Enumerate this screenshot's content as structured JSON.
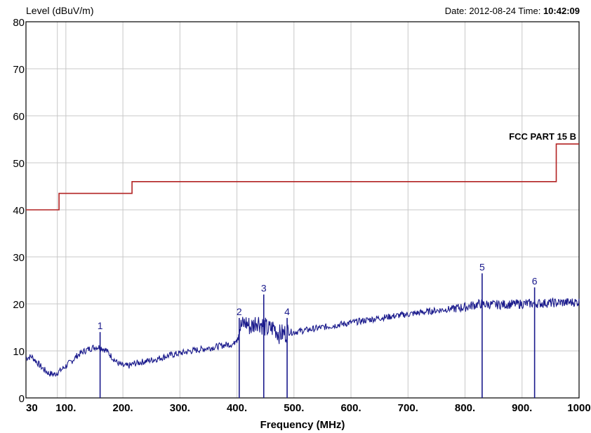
{
  "chart_data": {
    "type": "line",
    "title": "",
    "ylabel": "Level (dBuV/m)",
    "xlabel": "Frequency (MHz)",
    "header_right_prefix": "Date: 2012-08-24  Time: ",
    "header_right_time": "10:42:09",
    "xlim": [
      30,
      1000
    ],
    "ylim": [
      0,
      80
    ],
    "grid": true,
    "x_ticks": [
      {
        "value": 30,
        "label": "30"
      },
      {
        "value": 100,
        "label": "100."
      },
      {
        "value": 200,
        "label": "200."
      },
      {
        "value": 300,
        "label": "300."
      },
      {
        "value": 400,
        "label": "400."
      },
      {
        "value": 500,
        "label": "500."
      },
      {
        "value": 600,
        "label": "600."
      },
      {
        "value": 700,
        "label": "700."
      },
      {
        "value": 800,
        "label": "800."
      },
      {
        "value": 900,
        "label": "900."
      },
      {
        "value": 1000,
        "label": "1000"
      }
    ],
    "y_ticks": [
      0,
      10,
      20,
      30,
      40,
      50,
      60,
      70,
      80
    ],
    "x_minor_gridlines": [
      85
    ],
    "limit_line": {
      "name": "FCC PART 15 B",
      "color": "#b22222",
      "points": [
        [
          30,
          40
        ],
        [
          88,
          40
        ],
        [
          88,
          43.5
        ],
        [
          216,
          43.5
        ],
        [
          216,
          46
        ],
        [
          960,
          46
        ],
        [
          960,
          54
        ],
        [
          1000,
          54
        ]
      ]
    },
    "trace": {
      "color": "#1a1a8c",
      "points": [
        [
          30,
          8.5
        ],
        [
          40,
          8.8
        ],
        [
          50,
          7.5
        ],
        [
          60,
          6.2
        ],
        [
          70,
          5.2
        ],
        [
          80,
          5.0
        ],
        [
          90,
          5.8
        ],
        [
          100,
          6.8
        ],
        [
          110,
          7.8
        ],
        [
          120,
          9.0
        ],
        [
          130,
          9.8
        ],
        [
          140,
          10.4
        ],
        [
          150,
          10.8
        ],
        [
          160,
          10.8
        ],
        [
          170,
          10.2
        ],
        [
          180,
          8.8
        ],
        [
          190,
          7.5
        ],
        [
          200,
          6.8
        ],
        [
          210,
          6.8
        ],
        [
          220,
          7.3
        ],
        [
          240,
          7.8
        ],
        [
          260,
          8.3
        ],
        [
          280,
          9.0
        ],
        [
          300,
          9.5
        ],
        [
          320,
          10.0
        ],
        [
          340,
          10.4
        ],
        [
          360,
          10.8
        ],
        [
          380,
          11.3
        ],
        [
          395,
          11.5
        ],
        [
          405,
          15.0
        ],
        [
          415,
          16.0
        ],
        [
          425,
          15.0
        ],
        [
          435,
          16.5
        ],
        [
          445,
          15.5
        ],
        [
          455,
          14.5
        ],
        [
          465,
          15.0
        ],
        [
          475,
          13.5
        ],
        [
          490,
          14.0
        ],
        [
          500,
          14.0
        ],
        [
          550,
          15.0
        ],
        [
          600,
          16.0
        ],
        [
          650,
          17.0
        ],
        [
          700,
          17.8
        ],
        [
          750,
          18.6
        ],
        [
          800,
          19.3
        ],
        [
          825,
          20.0
        ],
        [
          850,
          19.8
        ],
        [
          900,
          20.0
        ],
        [
          950,
          20.2
        ],
        [
          1000,
          20.4
        ]
      ]
    },
    "markers": [
      {
        "label": "1",
        "x": 160,
        "y": 14.0
      },
      {
        "label": "2",
        "x": 404,
        "y": 17.0
      },
      {
        "label": "3",
        "x": 447,
        "y": 22.0
      },
      {
        "label": "4",
        "x": 488,
        "y": 17.0
      },
      {
        "label": "5",
        "x": 830,
        "y": 26.5
      },
      {
        "label": "6",
        "x": 922,
        "y": 23.5
      }
    ]
  }
}
